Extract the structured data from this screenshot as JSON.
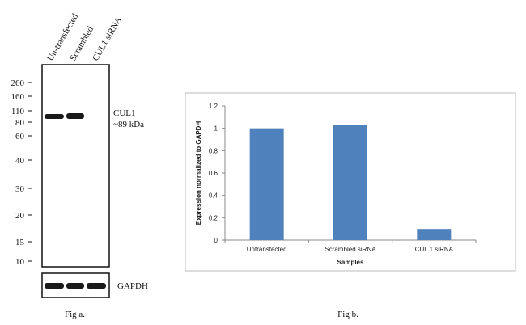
{
  "western_blot": {
    "lanes": [
      "Un-transfected",
      "Scrambled",
      "CUL1 siRNA"
    ],
    "markers": [
      260,
      160,
      110,
      80,
      60,
      40,
      30,
      20,
      15,
      10
    ],
    "band_label": "CUL1",
    "band_size": "~89 kDa",
    "loading_control": "GAPDH",
    "caption": "Fig a."
  },
  "chart_data": {
    "type": "bar",
    "caption": "Fig b.",
    "categories": [
      "Untransfected",
      "Scrambled siRNA",
      "CUL 1 siRNA"
    ],
    "values": [
      1,
      1.03,
      0.1
    ],
    "color": "#4f81bd",
    "x_label": "Samples",
    "y_label": "Expression  normalized to GAPDH",
    "ylim": [
      0,
      1.2
    ],
    "yticks": [
      0,
      0.2,
      0.4,
      0.6,
      0.8,
      1,
      1.2
    ]
  }
}
